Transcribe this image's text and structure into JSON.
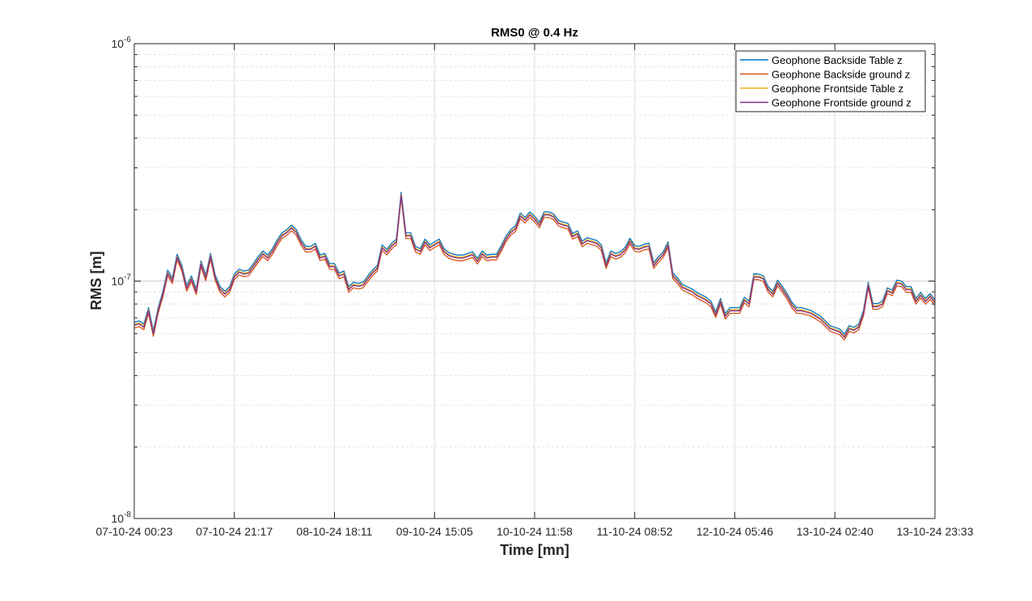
{
  "chart_data": {
    "type": "line",
    "title": "RMS0 @ 0.4 Hz",
    "xlabel": "Time [mn]",
    "ylabel": "RMS [m]",
    "yscale": "log",
    "ylim": [
      1e-08,
      1e-06
    ],
    "grid": true,
    "legend_position": "top-right",
    "x_tick_labels": [
      "07-10-24 00:23",
      "07-10-24 21:17",
      "08-10-24 18:11",
      "09-10-24 15:05",
      "10-10-24 11:58",
      "11-10-24 08:52",
      "12-10-24 05:46",
      "13-10-24 02:40",
      "13-10-24 23:33"
    ],
    "y_ticks": [
      {
        "base": "10",
        "exp": "-8",
        "value": 1e-08
      },
      {
        "base": "10",
        "exp": "-7",
        "value": 1e-07
      },
      {
        "base": "10",
        "exp": "-6",
        "value": 1e-06
      }
    ],
    "series": [
      {
        "name": "Geophone Backside Table z",
        "color": "#0072BD",
        "factor": 1.03
      },
      {
        "name": "Geophone Backside ground z",
        "color": "#D95319",
        "factor": 0.975
      },
      {
        "name": "Geophone Frontside Table z",
        "color": "#EDB120",
        "factor": 1.01
      },
      {
        "name": "Geophone Frontside ground z",
        "color": "#7E2F8E",
        "factor": 1.0
      }
    ],
    "base_values_e-8": [
      6.5,
      6.6,
      6.4,
      7.5,
      6.0,
      7.5,
      8.8,
      10.8,
      10.0,
      12.6,
      11.3,
      9.3,
      10.2,
      9.0,
      11.8,
      10.3,
      12.7,
      10.3,
      9.2,
      8.8,
      9.2,
      10.4,
      10.9,
      10.7,
      10.8,
      11.5,
      12.3,
      13.0,
      12.5,
      13.3,
      14.5,
      15.5,
      16.0,
      16.7,
      16.0,
      14.5,
      13.6,
      13.6,
      14.0,
      12.5,
      12.7,
      11.5,
      11.5,
      10.5,
      10.7,
      9.2,
      9.6,
      9.5,
      9.6,
      10.2,
      10.8,
      11.3,
      13.8,
      13.2,
      14.0,
      14.6,
      23.0,
      15.5,
      15.5,
      13.6,
      13.3,
      14.6,
      13.8,
      14.2,
      14.6,
      13.3,
      12.8,
      12.6,
      12.5,
      12.5,
      12.7,
      12.9,
      12.1,
      13.0,
      12.5,
      12.6,
      12.6,
      13.7,
      15.0,
      16.0,
      16.6,
      18.8,
      18.0,
      19.0,
      18.2,
      17.2,
      19.0,
      19.0,
      18.6,
      17.5,
      17.2,
      17.0,
      15.4,
      15.8,
      14.3,
      14.8,
      14.6,
      14.4,
      13.8,
      11.6,
      13.0,
      12.7,
      12.9,
      13.5,
      14.7,
      13.7,
      13.6,
      13.9,
      14.0,
      11.6,
      12.3,
      12.9,
      14.2,
      10.5,
      10.0,
      9.4,
      9.2,
      9.0,
      8.7,
      8.5,
      8.3,
      8.0,
      7.2,
      8.2,
      7.1,
      7.5,
      7.5,
      7.5,
      8.3,
      8.0,
      10.4,
      10.4,
      10.2,
      9.2,
      8.8,
      9.8,
      9.2,
      8.6,
      7.9,
      7.5,
      7.5,
      7.4,
      7.3,
      7.1,
      6.9,
      6.6,
      6.3,
      6.2,
      6.1,
      5.8,
      6.3,
      6.2,
      6.4,
      7.3,
      9.6,
      7.8,
      7.8,
      8.0,
      9.1,
      8.9,
      9.8,
      9.7,
      9.2,
      9.2,
      8.2,
      8.7,
      8.2,
      8.6,
      8.1
    ]
  }
}
